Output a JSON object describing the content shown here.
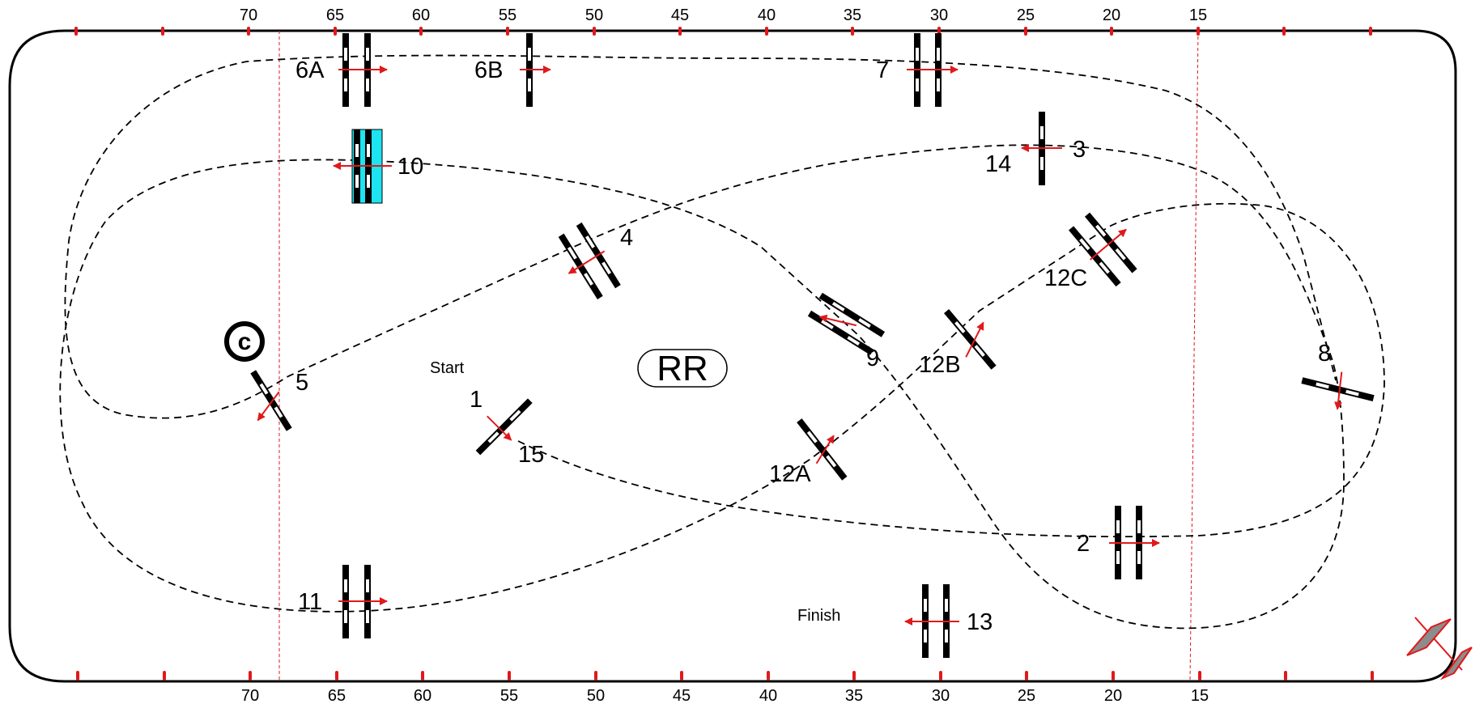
{
  "scale": {
    "top_ticks": [
      "70",
      "65",
      "60",
      "55",
      "50",
      "45",
      "40",
      "35",
      "30",
      "25",
      "20",
      "15"
    ],
    "bottom_ticks": [
      "70",
      "65",
      "60",
      "55",
      "50",
      "45",
      "40",
      "35",
      "30",
      "25",
      "20",
      "15"
    ]
  },
  "gates": [
    {
      "id": "g1",
      "label": "1"
    },
    {
      "id": "g2",
      "label": "2"
    },
    {
      "id": "g3",
      "label": "3"
    },
    {
      "id": "g4",
      "label": "4"
    },
    {
      "id": "g5",
      "label": "5"
    },
    {
      "id": "g6a",
      "label": "6A"
    },
    {
      "id": "g6b",
      "label": "6B"
    },
    {
      "id": "g7",
      "label": "7"
    },
    {
      "id": "g8",
      "label": "8"
    },
    {
      "id": "g9",
      "label": "9"
    },
    {
      "id": "g10",
      "label": "10"
    },
    {
      "id": "g11",
      "label": "11"
    },
    {
      "id": "g12a",
      "label": "12A"
    },
    {
      "id": "g12b",
      "label": "12B"
    },
    {
      "id": "g12c",
      "label": "12C"
    },
    {
      "id": "g13",
      "label": "13"
    },
    {
      "id": "g14",
      "label": "14"
    },
    {
      "id": "g15",
      "label": "15"
    }
  ],
  "start_label": "Start",
  "finish_label": "Finish",
  "rr_label": "RR",
  "c_label": "c",
  "colors": {
    "marker": "#e0191b",
    "special_gate": "#1ee3f0",
    "gate": "#000000",
    "border": "#000000",
    "wind_indicator": "#8c8c8c"
  }
}
